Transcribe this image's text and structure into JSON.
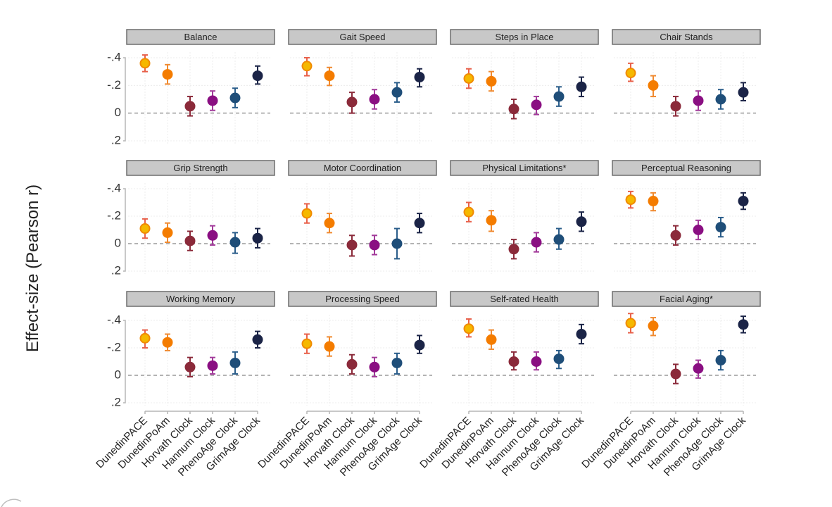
{
  "chart_data": {
    "type": "scatter",
    "subtype": "faceted point-range (effect size with 95% CI)",
    "ylabel": "Effect-size (Pearson r)",
    "ylim": [
      -0.4,
      0.2
    ],
    "y_reversed": true,
    "yticks": [
      -0.4,
      -0.2,
      0,
      0.2
    ],
    "ytick_labels": [
      "-.4",
      "-.2",
      "0",
      ".2"
    ],
    "reference_line": 0,
    "grid": true,
    "categories": [
      "DunedinPACE",
      "DunedinPoAm",
      "Horvath Clock",
      "Hannum Clock",
      "PhenoAge Clock",
      "GrimAge Clock"
    ],
    "colors": {
      "DunedinPACE": {
        "fill": "#f5b800",
        "stroke": "#f08a00",
        "bar": "#e8604a"
      },
      "DunedinPoAm": {
        "fill": "#f47c00",
        "stroke": "#f47c00",
        "bar": "#f08a30"
      },
      "Horvath Clock": {
        "fill": "#8b2a3a",
        "stroke": "#8b2a3a",
        "bar": "#8b2a3a"
      },
      "Hannum Clock": {
        "fill": "#8a0f82",
        "stroke": "#8a0f82",
        "bar": "#a23a9a"
      },
      "PhenoAge Clock": {
        "fill": "#1f4e79",
        "stroke": "#1f4e79",
        "bar": "#2a5d8a"
      },
      "GrimAge Clock": {
        "fill": "#1b2447",
        "stroke": "#1b2447",
        "bar": "#1b2447"
      }
    },
    "panels": [
      {
        "title": "Balance",
        "values": [
          -0.36,
          -0.28,
          -0.05,
          -0.09,
          -0.11,
          -0.27
        ],
        "lower": [
          -0.42,
          -0.35,
          -0.12,
          -0.16,
          -0.18,
          -0.34
        ],
        "upper": [
          -0.3,
          -0.21,
          0.02,
          -0.02,
          -0.04,
          -0.21
        ]
      },
      {
        "title": "Gait Speed",
        "values": [
          -0.34,
          -0.27,
          -0.08,
          -0.1,
          -0.15,
          -0.26
        ],
        "lower": [
          -0.4,
          -0.33,
          -0.15,
          -0.17,
          -0.22,
          -0.32
        ],
        "upper": [
          -0.27,
          -0.2,
          0.0,
          -0.03,
          -0.08,
          -0.19
        ]
      },
      {
        "title": "Steps in Place",
        "values": [
          -0.25,
          -0.23,
          -0.03,
          -0.06,
          -0.12,
          -0.19
        ],
        "lower": [
          -0.32,
          -0.3,
          -0.1,
          -0.12,
          -0.19,
          -0.26
        ],
        "upper": [
          -0.18,
          -0.16,
          0.04,
          0.01,
          -0.05,
          -0.12
        ]
      },
      {
        "title": "Chair Stands",
        "values": [
          -0.29,
          -0.2,
          -0.05,
          -0.09,
          -0.1,
          -0.15
        ],
        "lower": [
          -0.36,
          -0.27,
          -0.12,
          -0.16,
          -0.17,
          -0.22
        ],
        "upper": [
          -0.23,
          -0.12,
          0.02,
          -0.02,
          -0.03,
          -0.09
        ]
      },
      {
        "title": "Grip Strength",
        "values": [
          -0.11,
          -0.08,
          -0.02,
          -0.06,
          -0.01,
          -0.04
        ],
        "lower": [
          -0.18,
          -0.15,
          -0.09,
          -0.13,
          -0.08,
          -0.11
        ],
        "upper": [
          -0.04,
          -0.01,
          0.05,
          0.01,
          0.07,
          0.03
        ]
      },
      {
        "title": "Motor Coordination",
        "values": [
          -0.22,
          -0.15,
          0.01,
          0.01,
          0.0,
          -0.15
        ],
        "lower": [
          -0.29,
          -0.22,
          -0.06,
          -0.06,
          -0.11,
          -0.22
        ],
        "upper": [
          -0.15,
          -0.08,
          0.09,
          0.08,
          0.11,
          -0.08
        ]
      },
      {
        "title": "Physical Limitations*",
        "values": [
          -0.23,
          -0.17,
          0.04,
          -0.01,
          -0.03,
          -0.16
        ],
        "lower": [
          -0.3,
          -0.24,
          -0.03,
          -0.08,
          -0.11,
          -0.23
        ],
        "upper": [
          -0.16,
          -0.09,
          0.11,
          0.06,
          0.04,
          -0.09
        ]
      },
      {
        "title": "Perceptual Reasoning",
        "values": [
          -0.32,
          -0.31,
          -0.06,
          -0.1,
          -0.12,
          -0.31
        ],
        "lower": [
          -0.38,
          -0.37,
          -0.13,
          -0.17,
          -0.19,
          -0.37
        ],
        "upper": [
          -0.26,
          -0.24,
          0.01,
          -0.03,
          -0.05,
          -0.25
        ]
      },
      {
        "title": "Working Memory",
        "values": [
          -0.27,
          -0.24,
          -0.06,
          -0.07,
          -0.09,
          -0.26
        ],
        "lower": [
          -0.33,
          -0.3,
          -0.13,
          -0.13,
          -0.17,
          -0.32
        ],
        "upper": [
          -0.2,
          -0.18,
          0.01,
          -0.01,
          -0.01,
          -0.2
        ]
      },
      {
        "title": "Processing Speed",
        "values": [
          -0.23,
          -0.21,
          -0.08,
          -0.06,
          -0.09,
          -0.22
        ],
        "lower": [
          -0.3,
          -0.28,
          -0.15,
          -0.13,
          -0.16,
          -0.29
        ],
        "upper": [
          -0.16,
          -0.14,
          -0.01,
          0.01,
          -0.01,
          -0.16
        ]
      },
      {
        "title": "Self-rated Health",
        "values": [
          -0.34,
          -0.26,
          -0.1,
          -0.1,
          -0.12,
          -0.3
        ],
        "lower": [
          -0.41,
          -0.33,
          -0.17,
          -0.17,
          -0.18,
          -0.37
        ],
        "upper": [
          -0.28,
          -0.19,
          -0.04,
          -0.04,
          -0.05,
          -0.23
        ]
      },
      {
        "title": "Facial Aging*",
        "values": [
          -0.38,
          -0.36,
          -0.01,
          -0.05,
          -0.11,
          -0.37
        ],
        "lower": [
          -0.45,
          -0.42,
          -0.08,
          -0.11,
          -0.18,
          -0.43
        ],
        "upper": [
          -0.31,
          -0.29,
          0.06,
          0.02,
          -0.04,
          -0.31
        ]
      }
    ]
  }
}
